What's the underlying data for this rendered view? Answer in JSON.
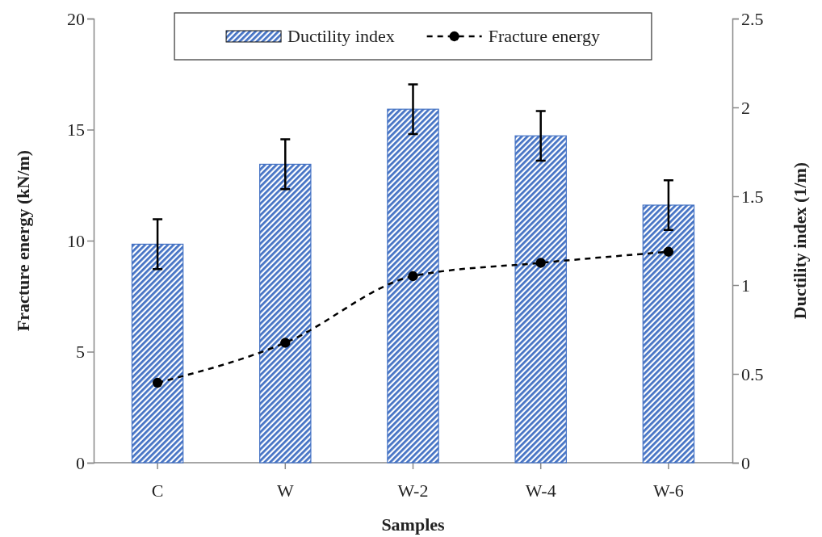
{
  "chart_data": {
    "type": "bar",
    "categories": [
      "C",
      "W",
      "W-2",
      "W-4",
      "W-6"
    ],
    "series": [
      {
        "name": "Ductility index",
        "axis": "y2",
        "color": "#4472c4",
        "values": [
          1.23,
          1.68,
          1.99,
          1.84,
          1.45
        ],
        "errors": [
          0.14,
          0.14,
          0.14,
          0.14,
          0.14
        ]
      },
      {
        "name": "Fracture energy",
        "type": "line",
        "axis": "y",
        "color": "#000000",
        "values": [
          3.6,
          5.4,
          8.4,
          9.0,
          9.5
        ],
        "marker": "circle",
        "line_style": "dashed"
      }
    ],
    "xlabel": "Samples",
    "ylabel": "Fracture energy (kN/m)",
    "y2label": "Ductility index (1/m)",
    "ylim": [
      0,
      20
    ],
    "yticks": [
      0,
      5,
      10,
      15,
      20
    ],
    "y2lim": [
      0,
      2.5
    ],
    "y2ticks": [
      0,
      0.5,
      1,
      1.5,
      2,
      2.5
    ],
    "legend": "top",
    "grid": false
  }
}
